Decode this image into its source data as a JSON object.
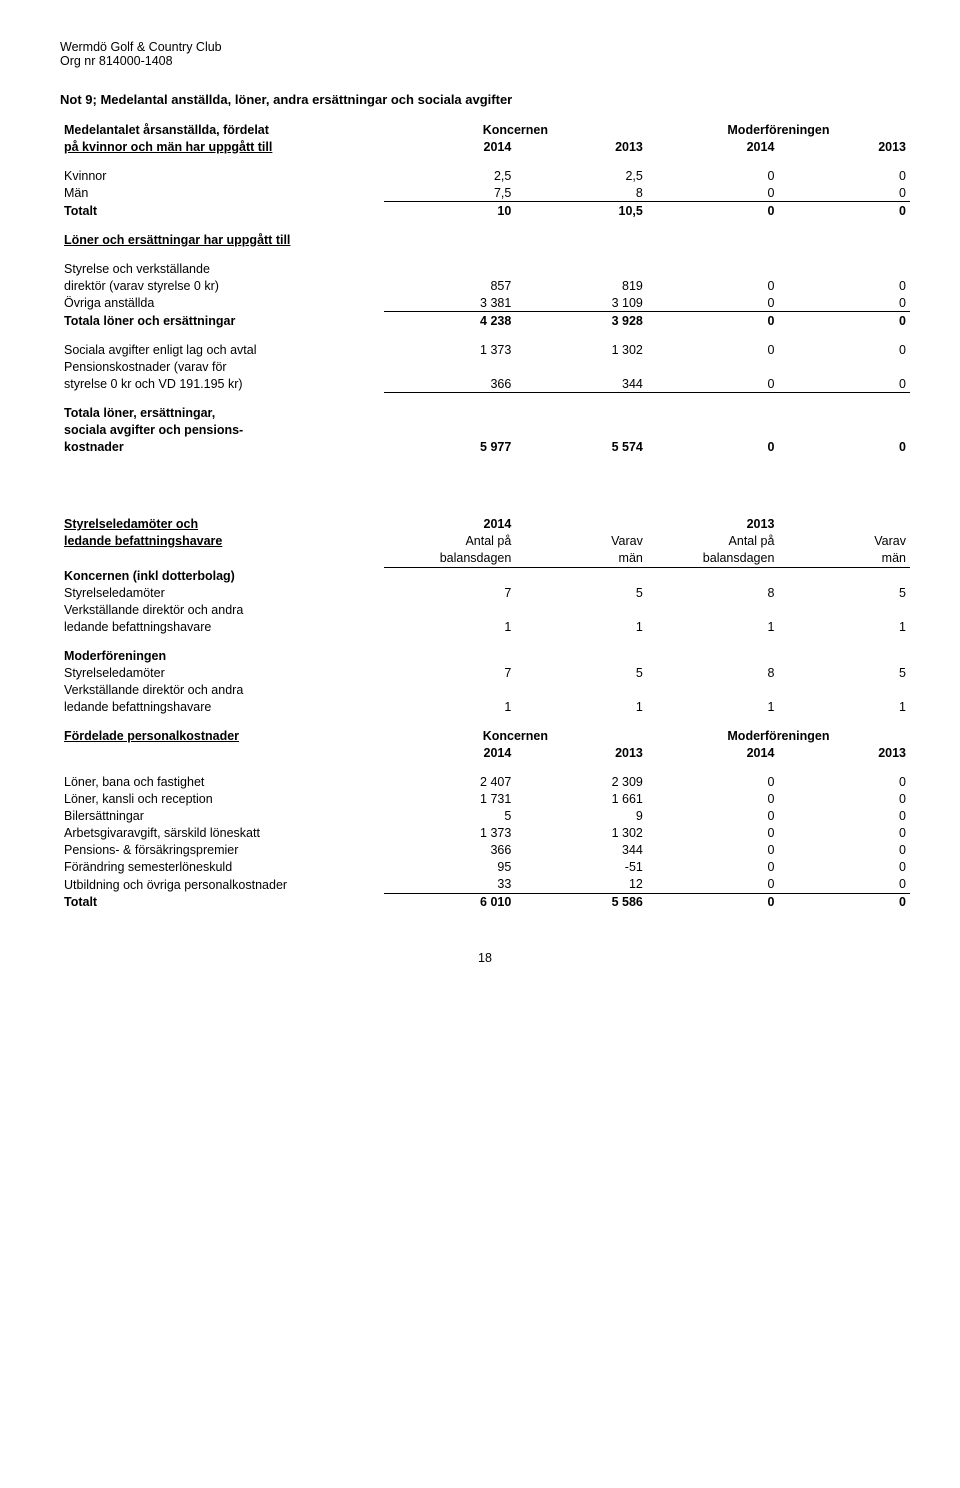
{
  "header": {
    "line1": "Wermdö Golf & Country Club",
    "line2": "Org nr 814000-1408"
  },
  "noteTitle": "Not 9; Medelantal anställda, löner, andra ersättningar och sociala avgifter",
  "section1": {
    "groupHeaders": {
      "labelRow1": "Medelantalet årsanställda, fördelat",
      "labelRow2": "på kvinnor och män har uppgått till",
      "koncernen": "Koncernen",
      "moder": "Moderföreningen",
      "y2014": "2014",
      "y2013": "2013"
    },
    "rows": {
      "kvinnor": {
        "label": "Kvinnor",
        "c1": "2,5",
        "c2": "2,5",
        "c3": "0",
        "c4": "0"
      },
      "man": {
        "label": "Män",
        "c1": "7,5",
        "c2": "8",
        "c3": "0",
        "c4": "0"
      },
      "totalt": {
        "label": "Totalt",
        "c1": "10",
        "c2": "10,5",
        "c3": "0",
        "c4": "0"
      }
    }
  },
  "section2": {
    "heading": "Löner och ersättningar har uppgått till",
    "rows": {
      "styrelse1": "Styrelse och verkställande",
      "styrelse2": {
        "label": "direktör (varav styrelse 0 kr)",
        "c1": "857",
        "c2": "819",
        "c3": "0",
        "c4": "0"
      },
      "ovriga": {
        "label": "Övriga anställda",
        "c1": "3 381",
        "c2": "3 109",
        "c3": "0",
        "c4": "0"
      },
      "totala": {
        "label": "Totala löner och ersättningar",
        "c1": "4 238",
        "c2": "3 928",
        "c3": "0",
        "c4": "0"
      }
    }
  },
  "section3": {
    "rows": {
      "soc": {
        "label": "Sociala avgifter enligt lag och avtal",
        "c1": "1 373",
        "c2": "1 302",
        "c3": "0",
        "c4": "0"
      },
      "pens1": "Pensionskostnader (varav för",
      "pens2": {
        "label": "styrelse 0 kr och VD 191.195 kr)",
        "c1": "366",
        "c2": "344",
        "c3": "0",
        "c4": "0"
      }
    }
  },
  "section4": {
    "tot1": "Totala löner, ersättningar,",
    "tot2": "sociala avgifter och pensions-",
    "tot3": {
      "label": "kostnader",
      "c1": "5 977",
      "c2": "5 574",
      "c3": "0",
      "c4": "0"
    }
  },
  "section5": {
    "headings": {
      "row1a": "Styrelseledamöter och",
      "row1b": "2014",
      "row1c": "2013",
      "row2a": "ledande befattningshavare",
      "antal": "Antal på",
      "varav": "Varav",
      "balans": "balansdagen",
      "man": "män"
    },
    "koncernenInkl": "Koncernen (inkl dotterbolag)",
    "rows": {
      "styrelseLed": {
        "label": "Styrelseledamöter",
        "c1": "7",
        "c2": "5",
        "c3": "8",
        "c4": "5"
      },
      "vd1": "Verkställande direktör och andra",
      "vd2": {
        "label": "ledande befattningshavare",
        "c1": "1",
        "c2": "1",
        "c3": "1",
        "c4": "1"
      }
    },
    "moderHeading": "Moderföreningen",
    "rowsM": {
      "styrelseLed": {
        "label": "Styrelseledamöter",
        "c1": "7",
        "c2": "5",
        "c3": "8",
        "c4": "5"
      },
      "vd1": "Verkställande direktör och andra",
      "vd2": {
        "label": "ledande befattningshavare",
        "c1": "1",
        "c2": "1",
        "c3": "1",
        "c4": "1"
      }
    }
  },
  "section6": {
    "heading": {
      "label": "Fördelade personalkostnader",
      "konc": "Koncernen",
      "moder": "Moderföreningen",
      "y2014": "2014",
      "y2013": "2013"
    },
    "rows": {
      "r1": {
        "label": "Löner, bana och fastighet",
        "c1": "2 407",
        "c2": "2 309",
        "c3": "0",
        "c4": "0"
      },
      "r2": {
        "label": "Löner, kansli och reception",
        "c1": "1 731",
        "c2": "1 661",
        "c3": "0",
        "c4": "0"
      },
      "r3": {
        "label": "Bilersättningar",
        "c1": "5",
        "c2": "9",
        "c3": "0",
        "c4": "0"
      },
      "r4": {
        "label": "Arbetsgivaravgift, särskild löneskatt",
        "c1": "1 373",
        "c2": "1 302",
        "c3": "0",
        "c4": "0"
      },
      "r5": {
        "label": "Pensions- & försäkringspremier",
        "c1": "366",
        "c2": "344",
        "c3": "0",
        "c4": "0"
      },
      "r6": {
        "label": "Förändring semesterlöneskuld",
        "c1": "95",
        "c2": "-51",
        "c3": "0",
        "c4": "0"
      },
      "r7": {
        "label": "Utbildning och övriga personalkostnader",
        "c1": "33",
        "c2": "12",
        "c3": "0",
        "c4": "0"
      },
      "tot": {
        "label": "Totalt",
        "c1": "6 010",
        "c2": "5 586",
        "c3": "0",
        "c4": "0"
      }
    }
  },
  "pageNumber": "18"
}
